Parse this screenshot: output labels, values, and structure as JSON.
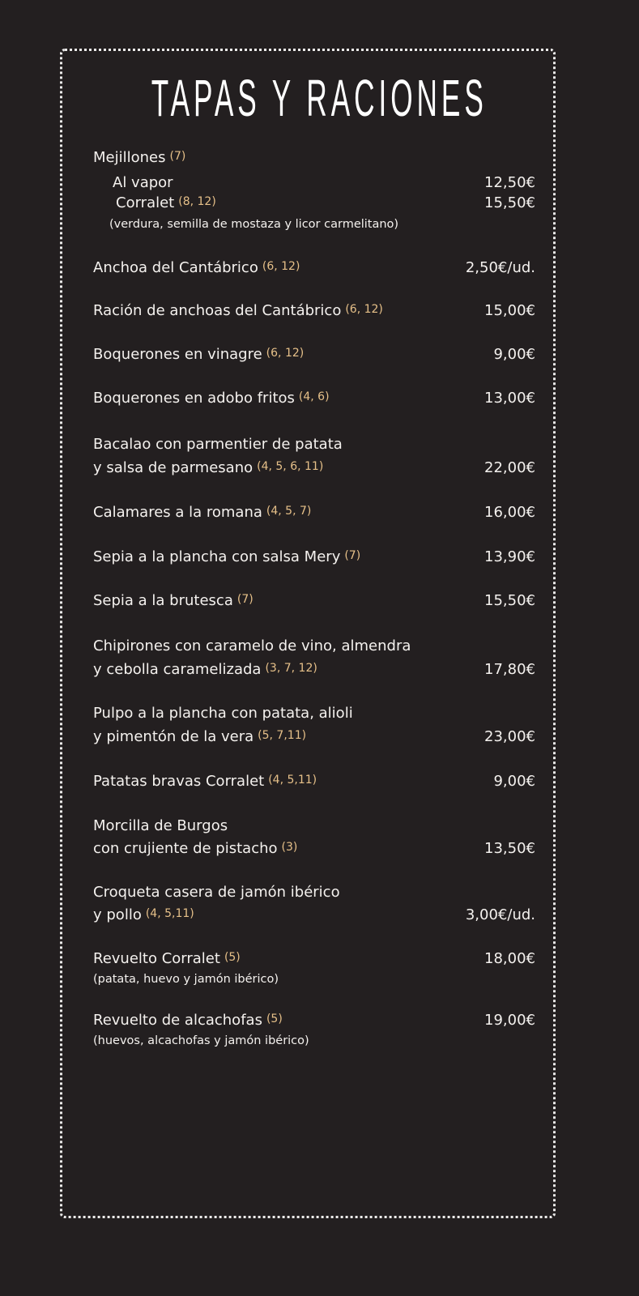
{
  "title": "TAPAS Y RACIONES",
  "colors": {
    "background": "#231f20",
    "text": "#f4f1ee",
    "allergens": "#e6c089",
    "border": "#ecebea"
  },
  "items": [
    {
      "lines": [
        {
          "text": "Mejillones",
          "allergens": "(7)",
          "price": ""
        },
        {
          "text": "Al vapor",
          "allergens": "",
          "price": "12,50€",
          "indent": true
        },
        {
          "text": "Corralet",
          "allergens": "(8, 12)",
          "price": "15,50€",
          "indent": true
        },
        {
          "text": "(verdura, semilla de mostaza y licor carmelitano)",
          "allergens": "",
          "price": "",
          "indent": true,
          "note": true
        }
      ]
    },
    {
      "lines": [
        {
          "text": "Anchoa del Cantábrico",
          "allergens": "(6, 12)",
          "price": "2,50€/ud."
        }
      ]
    },
    {
      "lines": [
        {
          "text": "Ración de anchoas del Cantábrico",
          "allergens": "(6, 12)",
          "price": "15,00€"
        }
      ]
    },
    {
      "lines": [
        {
          "text": "Boquerones en vinagre",
          "allergens": "(6, 12)",
          "price": "9,00€"
        }
      ]
    },
    {
      "lines": [
        {
          "text": "Boquerones en adobo fritos",
          "allergens": "(4, 6)",
          "price": "13,00€"
        }
      ]
    },
    {
      "lines": [
        {
          "text": "Bacalao con parmentier de patata",
          "allergens": "",
          "price": ""
        },
        {
          "text": "y salsa de parmesano",
          "allergens": "(4, 5, 6, 11)",
          "price": "22,00€"
        }
      ]
    },
    {
      "lines": [
        {
          "text": "Calamares a la romana",
          "allergens": "(4, 5, 7)",
          "price": "16,00€"
        }
      ]
    },
    {
      "lines": [
        {
          "text": "Sepia a la plancha con salsa Mery",
          "allergens": "(7)",
          "price": "13,90€"
        }
      ]
    },
    {
      "lines": [
        {
          "text": "Sepia a la brutesca",
          "allergens": "(7)",
          "price": "15,50€"
        }
      ]
    },
    {
      "lines": [
        {
          "text": "Chipirones con caramelo de vino, almendra",
          "allergens": "",
          "price": ""
        },
        {
          "text": "y cebolla caramelizada",
          "allergens": "(3, 7, 12)",
          "price": "17,80€"
        }
      ]
    },
    {
      "lines": [
        {
          "text": "Pulpo a la plancha con patata, alioli",
          "allergens": "",
          "price": ""
        },
        {
          "text": "y pimentón de la vera",
          "allergens": "(5, 7,11)",
          "price": "23,00€"
        }
      ]
    },
    {
      "lines": [
        {
          "text": "Patatas bravas Corralet",
          "allergens": "(4, 5,11)",
          "price": "9,00€"
        }
      ]
    },
    {
      "lines": [
        {
          "text": "Morcilla de Burgos",
          "allergens": "",
          "price": ""
        },
        {
          "text": "con crujiente de pistacho",
          "allergens": "(3)",
          "price": "13,50€"
        }
      ]
    },
    {
      "lines": [
        {
          "text": "Croqueta casera de jamón ibérico",
          "allergens": "",
          "price": ""
        },
        {
          "text": "y pollo",
          "allergens": "(4, 5,11)",
          "price": "3,00€/ud."
        }
      ]
    },
    {
      "lines": [
        {
          "text": "Revuelto Corralet",
          "allergens": "(5)",
          "price": "18,00€"
        },
        {
          "text": "(patata, huevo y jamón ibérico)",
          "allergens": "",
          "price": "",
          "note": true
        }
      ]
    },
    {
      "lines": [
        {
          "text": "Revuelto de alcachofas",
          "allergens": "(5)",
          "price": "19,00€"
        },
        {
          "text": "(huevos, alcachofas y jamón ibérico)",
          "allergens": "",
          "price": "",
          "note": true
        }
      ]
    }
  ]
}
